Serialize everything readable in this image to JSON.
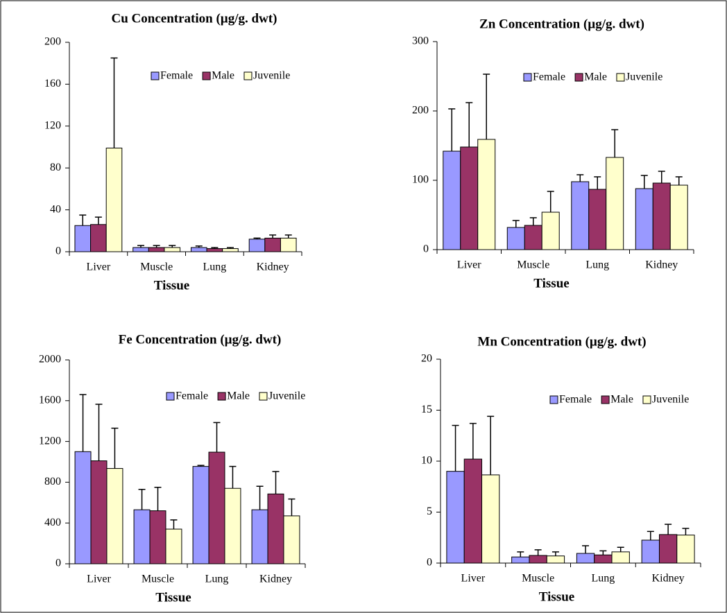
{
  "chart_data": [
    {
      "type": "bar",
      "title": "Cu Concentration (µg/g. dwt)",
      "x_label": "Tissue",
      "categories": [
        "Liver",
        "Muscle",
        "Lung",
        "Kidney"
      ],
      "series": [
        {
          "name": "Female",
          "color": "#9999ff",
          "values": [
            25,
            4,
            4,
            12
          ],
          "errors": [
            10,
            2,
            1.5,
            1
          ]
        },
        {
          "name": "Male",
          "color": "#993366",
          "values": [
            26,
            4,
            3,
            13
          ],
          "errors": [
            7,
            2,
            1,
            3
          ]
        },
        {
          "name": "Juvenile",
          "color": "#ffffcc",
          "values": [
            99,
            4,
            3,
            13
          ],
          "errors": [
            86,
            2,
            1,
            3
          ]
        }
      ],
      "ylim": [
        0,
        200
      ],
      "yticks": [
        0,
        40,
        80,
        120,
        160,
        200
      ]
    },
    {
      "type": "bar",
      "title": "Zn Concentration (µg/g. dwt)",
      "x_label": "Tissue",
      "categories": [
        "Liver",
        "Muscle",
        "Lung",
        "Kidney"
      ],
      "series": [
        {
          "name": "Female",
          "color": "#9999ff",
          "values": [
            142,
            32,
            98,
            88
          ],
          "errors": [
            61,
            10,
            10,
            19
          ]
        },
        {
          "name": "Male",
          "color": "#993366",
          "values": [
            148,
            35,
            87,
            96
          ],
          "errors": [
            64,
            11,
            18,
            17
          ]
        },
        {
          "name": "Juvenile",
          "color": "#ffffcc",
          "values": [
            159,
            54,
            133,
            93
          ],
          "errors": [
            94,
            30,
            40,
            12
          ]
        }
      ],
      "ylim": [
        0,
        300
      ],
      "yticks": [
        0,
        100,
        200,
        300
      ]
    },
    {
      "type": "bar",
      "title": "Fe Concentration (µg/g. dwt)",
      "x_label": "Tissue",
      "categories": [
        "Liver",
        "Muscle",
        "Lung",
        "Kidney"
      ],
      "series": [
        {
          "name": "Female",
          "color": "#9999ff",
          "values": [
            1100,
            530,
            955,
            530
          ],
          "errors": [
            560,
            200,
            10,
            230
          ]
        },
        {
          "name": "Male",
          "color": "#993366",
          "values": [
            1010,
            520,
            1095,
            685
          ],
          "errors": [
            555,
            230,
            290,
            220
          ]
        },
        {
          "name": "Juvenile",
          "color": "#ffffcc",
          "values": [
            935,
            340,
            740,
            470
          ],
          "errors": [
            395,
            90,
            215,
            165
          ]
        }
      ],
      "ylim": [
        0,
        2000
      ],
      "yticks": [
        0,
        400,
        800,
        1200,
        1600,
        2000
      ]
    },
    {
      "type": "bar",
      "title": "Mn Concentration (µg/g. dwt)",
      "x_label": "Tissue",
      "categories": [
        "Liver",
        "Muscle",
        "Lung",
        "Kidney"
      ],
      "series": [
        {
          "name": "Female",
          "color": "#9999ff",
          "values": [
            9,
            0.6,
            0.95,
            2.25
          ],
          "errors": [
            4.5,
            0.5,
            0.75,
            0.85
          ]
        },
        {
          "name": "Male",
          "color": "#993366",
          "values": [
            10.2,
            0.75,
            0.8,
            2.8
          ],
          "errors": [
            3.5,
            0.55,
            0.4,
            1.0
          ]
        },
        {
          "name": "Juvenile",
          "color": "#ffffcc",
          "values": [
            8.65,
            0.7,
            1.1,
            2.75
          ],
          "errors": [
            5.75,
            0.4,
            0.45,
            0.65
          ]
        }
      ],
      "ylim": [
        0,
        20
      ],
      "yticks": [
        0,
        5,
        10,
        15,
        20
      ]
    }
  ]
}
